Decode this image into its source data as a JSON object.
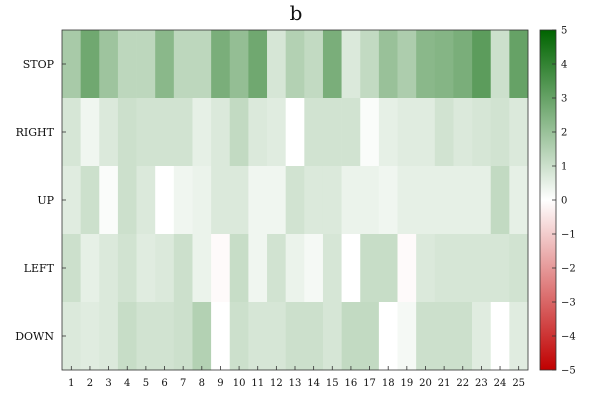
{
  "chart_data": {
    "type": "heatmap",
    "title": "b",
    "rows": [
      "STOP",
      "RIGHT",
      "UP",
      "LEFT",
      "DOWN"
    ],
    "columns": [
      "1",
      "2",
      "3",
      "4",
      "5",
      "6",
      "7",
      "8",
      "9",
      "10",
      "11",
      "12",
      "13",
      "14",
      "15",
      "16",
      "17",
      "18",
      "19",
      "20",
      "21",
      "22",
      "23",
      "24",
      "25"
    ],
    "values": [
      [
        1.7,
        2.8,
        1.9,
        1.3,
        1.3,
        2.3,
        1.3,
        1.3,
        2.6,
        2.1,
        2.8,
        0.8,
        1.5,
        1.2,
        2.6,
        0.7,
        1.2,
        2.0,
        1.6,
        2.3,
        2.4,
        2.6,
        3.2,
        1.0,
        3.0
      ],
      [
        0.8,
        0.3,
        0.7,
        1.0,
        0.9,
        0.9,
        0.9,
        0.5,
        0.7,
        1.2,
        0.7,
        0.6,
        0.0,
        0.9,
        0.9,
        0.9,
        0.1,
        0.5,
        0.6,
        0.6,
        0.9,
        0.7,
        0.8,
        0.9,
        0.7
      ],
      [
        0.6,
        1.0,
        0.1,
        1.0,
        0.7,
        0.0,
        0.3,
        0.4,
        0.7,
        0.7,
        0.3,
        0.3,
        0.9,
        0.7,
        0.7,
        0.4,
        0.4,
        0.3,
        0.5,
        0.5,
        0.5,
        0.5,
        0.5,
        1.2,
        0.5
      ],
      [
        1.0,
        0.5,
        0.7,
        0.9,
        0.6,
        0.7,
        1.0,
        0.4,
        -0.1,
        1.1,
        0.3,
        0.9,
        0.4,
        0.2,
        0.8,
        0.0,
        1.1,
        1.1,
        -0.1,
        0.7,
        0.8,
        0.8,
        0.8,
        0.8,
        0.9
      ],
      [
        0.7,
        0.6,
        0.7,
        1.1,
        0.9,
        0.9,
        1.0,
        1.5,
        0.0,
        1.0,
        0.8,
        0.8,
        1.0,
        1.0,
        0.8,
        1.2,
        1.2,
        0.0,
        0.2,
        1.0,
        1.0,
        1.0,
        0.6,
        0.0,
        0.6
      ]
    ],
    "colorbar": {
      "min": -5,
      "max": 5,
      "ticks": [
        5,
        4,
        3,
        2,
        1,
        0,
        -1,
        -2,
        -3,
        -4,
        -5
      ]
    },
    "colors": {
      "neg": "#c00000",
      "mid": "#ffffff",
      "pos": "#006400"
    }
  }
}
